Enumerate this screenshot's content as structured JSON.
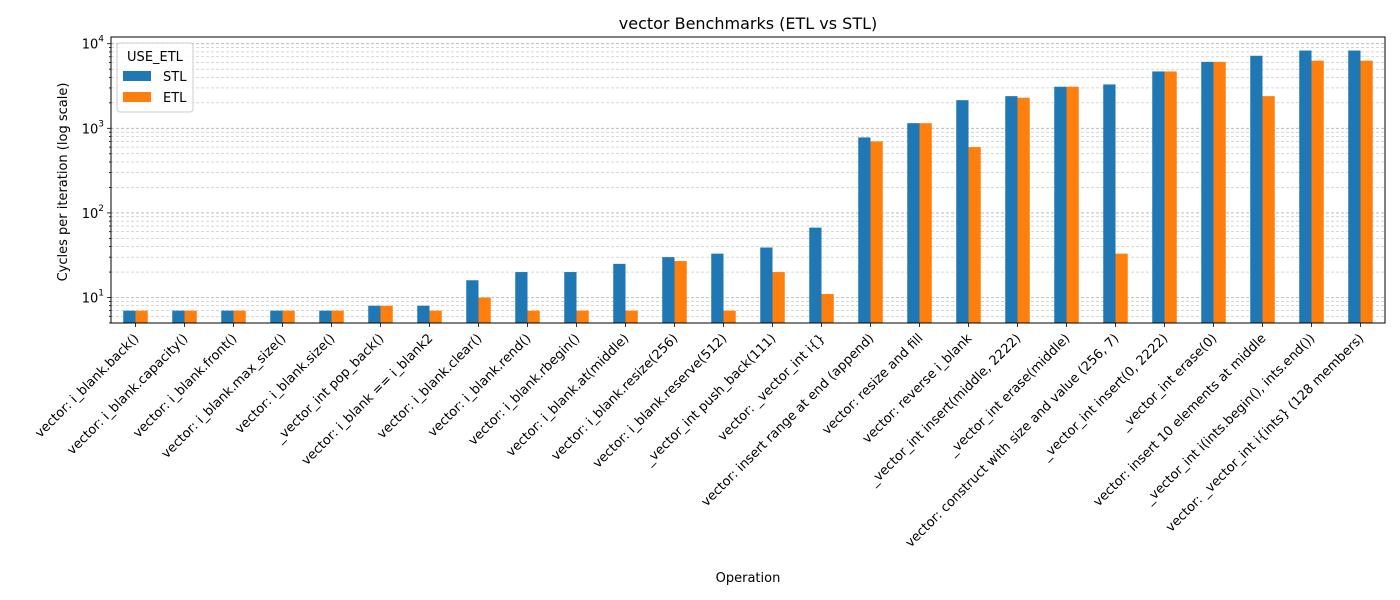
{
  "chart_data": {
    "type": "bar",
    "title": "vector Benchmarks (ETL vs STL)",
    "xlabel": "Operation",
    "ylabel": "Cycles per iteration (log scale)",
    "yscale": "log",
    "ylim": [
      5,
      12000
    ],
    "yticks": [
      {
        "value": 10,
        "base": "10",
        "exp": "1"
      },
      {
        "value": 100,
        "base": "10",
        "exp": "2"
      },
      {
        "value": 1000,
        "base": "10",
        "exp": "3"
      },
      {
        "value": 10000,
        "base": "10",
        "exp": "4"
      }
    ],
    "grid": true,
    "legend": {
      "title": "USE_ETL",
      "position": "top-left"
    },
    "categories": [
      "vector: i_blank.back()",
      "vector: i_blank.capacity()",
      "vector: i_blank.front()",
      "vector: i_blank.max_size()",
      "vector: i_blank.size()",
      "_vector_int pop_back()",
      "vector: i_blank == i_blank2",
      "vector: i_blank.clear()",
      "vector: i_blank.rend()",
      "vector: i_blank.rbegin()",
      "vector: i_blank.at(middle)",
      "vector: i_blank.resize(256)",
      "vector: i_blank.reserve(512)",
      "_vector_int push_back(111)",
      "vector: _vector_int i{}",
      "vector: insert range at end (append)",
      "vector: resize and fill",
      "vector: reverse i_blank",
      "_vector_int insert(middle, 2222)",
      "_vector_int erase(middle)",
      "vector: construct with size and value (256, 7)",
      "_vector_int insert(0, 2222)",
      "_vector_int erase(0)",
      "vector: insert 10 elements at middle",
      "_vector_int i(ints.begin(), ints.end())",
      "vector: _vector_int i{ints} (128 members)"
    ],
    "series": [
      {
        "name": "STL",
        "color": "#1f77b4",
        "values": [
          7,
          7,
          7,
          7,
          7,
          8,
          8,
          16,
          20,
          20,
          25,
          30,
          33,
          39,
          67,
          780,
          1150,
          2150,
          2400,
          3100,
          3300,
          4700,
          6100,
          7200,
          8300,
          8300
        ]
      },
      {
        "name": "ETL",
        "color": "#ff7f0e",
        "values": [
          7,
          7,
          7,
          7,
          7,
          8,
          7,
          10,
          7,
          7,
          7,
          27,
          7,
          20,
          11,
          700,
          1150,
          600,
          2300,
          3100,
          33,
          4700,
          6100,
          2400,
          6300,
          6300
        ]
      }
    ]
  }
}
